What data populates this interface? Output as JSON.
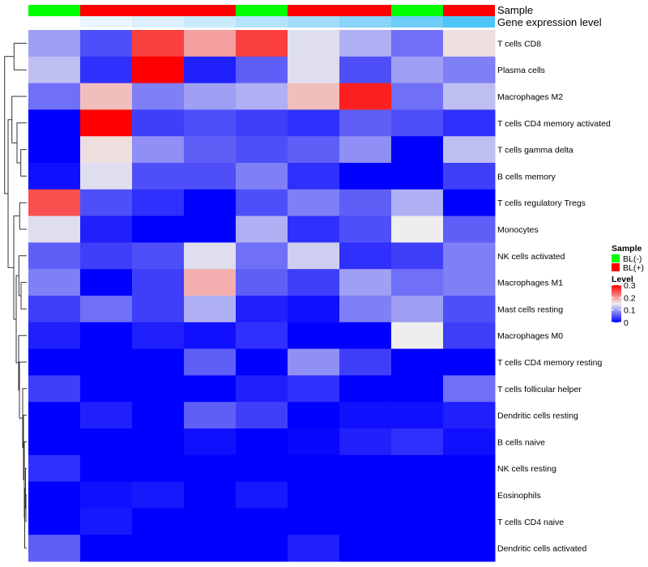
{
  "chart_data": {
    "type": "heatmap",
    "title": "",
    "annotation_labels": {
      "sample": "Sample",
      "gene": "Gene expression level"
    },
    "columns": 9,
    "sample_groups": [
      "BL(-)",
      "BL(+)",
      "BL(+)",
      "BL(+)",
      "BL(-)",
      "BL(+)",
      "BL(+)",
      "BL(-)",
      "BL(+)"
    ],
    "gene_expression_colors": [
      "#FFFFFF",
      "#EAF6FD",
      "#DBF0FC",
      "#C9EAFB",
      "#B5E3F9",
      "#A2DCF8",
      "#89D4F8",
      "#6ECDF6",
      "#4DC6F5"
    ],
    "rows": [
      "T cells CD8",
      "Plasma cells",
      "Macrophages M2",
      "T cells CD4 memory activated",
      "T cells gamma delta",
      "B cells memory",
      "T cells regulatory  Tregs",
      "Monocytes",
      "NK cells activated",
      "Macrophages M1",
      "Mast cells resting",
      "Macrophages M0",
      "T cells CD4 memory resting",
      "T cells follicular helper",
      "Dendritic cells resting",
      "B cells naive",
      "NK cells resting",
      "Eosinophils",
      "T cells CD4 naive",
      "Dendritic cells activated"
    ],
    "values": [
      [
        0.1,
        0.05,
        0.26,
        0.2,
        0.26,
        0.14,
        0.11,
        0.07,
        0.16
      ],
      [
        0.12,
        0.03,
        0.3,
        0.02,
        0.06,
        0.14,
        0.05,
        0.1,
        0.08
      ],
      [
        0.07,
        0.18,
        0.08,
        0.1,
        0.11,
        0.18,
        0.28,
        0.07,
        0.12
      ],
      [
        0.0,
        0.3,
        0.04,
        0.05,
        0.04,
        0.03,
        0.06,
        0.05,
        0.03
      ],
      [
        0.0,
        0.16,
        0.09,
        0.06,
        0.05,
        0.06,
        0.09,
        0.0,
        0.12
      ],
      [
        0.01,
        0.14,
        0.05,
        0.05,
        0.08,
        0.03,
        0.0,
        0.0,
        0.04
      ],
      [
        0.25,
        0.05,
        0.03,
        0.0,
        0.05,
        0.08,
        0.06,
        0.11,
        0.0
      ],
      [
        0.14,
        0.02,
        0.0,
        0.0,
        0.11,
        0.03,
        0.05,
        0.15,
        0.06
      ],
      [
        0.06,
        0.04,
        0.05,
        0.14,
        0.07,
        0.13,
        0.03,
        0.04,
        0.08
      ],
      [
        0.08,
        0.0,
        0.04,
        0.19,
        0.06,
        0.04,
        0.1,
        0.07,
        0.08
      ],
      [
        0.04,
        0.07,
        0.04,
        0.11,
        0.02,
        0.01,
        0.08,
        0.1,
        0.05
      ],
      [
        0.02,
        0.0,
        0.02,
        0.01,
        0.03,
        0.0,
        0.0,
        0.15,
        0.04
      ],
      [
        0.0,
        0.0,
        0.0,
        0.06,
        0.0,
        0.09,
        0.04,
        0.0,
        0.0
      ],
      [
        0.04,
        0.0,
        0.0,
        0.0,
        0.02,
        0.03,
        0.0,
        0.0,
        0.07
      ],
      [
        0.0,
        0.02,
        0.0,
        0.06,
        0.04,
        0.0,
        0.01,
        0.01,
        0.02
      ],
      [
        0.0,
        0.0,
        0.0,
        0.01,
        0.0,
        0.005,
        0.02,
        0.03,
        0.01
      ],
      [
        0.03,
        0.0,
        0.0,
        0.0,
        0.0,
        0.0,
        0.0,
        0.0,
        0.0
      ],
      [
        0.0,
        0.01,
        0.015,
        0.0,
        0.015,
        0.0,
        0.0,
        0.0,
        0.0
      ],
      [
        0.0,
        0.015,
        0.0,
        0.0,
        0.0,
        0.0,
        0.0,
        0.0,
        0.0
      ],
      [
        0.06,
        0.0,
        0.0,
        0.0,
        0.0,
        0.02,
        0.0,
        0.0,
        0.0
      ]
    ],
    "color_scale": {
      "min": 0,
      "mid": 0.15,
      "max": 0.3,
      "low": "#0000FF",
      "midColor": "#EEEEEE",
      "high": "#FF0000"
    },
    "row_dendrogram": {
      "h": 27.3,
      "c": [
        {
          "h": 15.7,
          "c": [
            0,
            1
          ]
        },
        {
          "h": 23,
          "c": [
            {
              "h": 18.3,
              "c": [
                2,
                {
                  "h": 12,
                  "c": [
                    3,
                    {
                      "h": 7.3,
                      "c": [
                        4,
                        5
                      ]
                    }
                  ]
                }
              ]
            },
            {
              "h": 16,
              "c": [
                {
                  "h": 8.7,
                  "c": [
                    6,
                    7
                  ]
                },
                {
                  "h": 13,
                  "c": [
                    {
                      "h": 9.7,
                      "c": [
                        8,
                        {
                          "h": 7,
                          "c": [
                            9,
                            10
                          ]
                        }
                      ]
                    },
                    {
                      "h": 10,
                      "c": [
                        11,
                        {
                          "h": 9,
                          "c": [
                            12,
                            {
                              "h": 5,
                              "c": [
                                13,
                                {
                                  "h": 4,
                                  "c": [
                                    14,
                                    {
                                      "h": 3,
                                      "c": [
                                        15,
                                        {
                                          "h": 2.5,
                                          "c": [
                                            {
                                              "h": 1.5,
                                              "c": [
                                                16,
                                                {
                                                  "h": 1,
                                                  "c": [
                                                    17,
                                                    18
                                                  ]
                                                }
                                              ]
                                            },
                                            19
                                          ]
                                        }
                                      ]
                                    }
                                  ]
                                }
                              ]
                            }
                          ]
                        }
                      ]
                    }
                  ]
                }
              ]
            }
          ]
        }
      ]
    },
    "legend": {
      "sample_title": "Sample",
      "sample_items": [
        {
          "label": "BL(-)",
          "color": "#00FF00"
        },
        {
          "label": "BL(+)",
          "color": "#FF0000"
        }
      ],
      "level_title": "Level",
      "level_ticks": [
        "0.3",
        "0.2",
        "0.1",
        "0"
      ],
      "level_tick_values": [
        0.3,
        0.2,
        0.1,
        0
      ],
      "placement": "right"
    }
  }
}
